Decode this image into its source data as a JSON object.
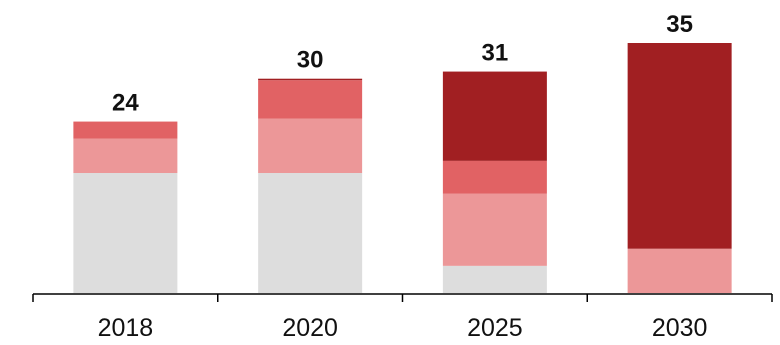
{
  "chart_data": {
    "type": "bar",
    "stacked": true,
    "categories": [
      "2018",
      "2020",
      "2025",
      "2030"
    ],
    "totals": [
      24,
      30,
      31,
      35
    ],
    "series": [
      {
        "values": [
          16.8,
          16.8,
          3.8,
          0
        ],
        "color": "#dddddd"
      },
      {
        "values": [
          4.8,
          7.6,
          10.1,
          6.2
        ],
        "color": "#ec9798"
      },
      {
        "values": [
          2.4,
          5.4,
          4.6,
          0
        ],
        "color": "#e16264"
      },
      {
        "values": [
          0,
          0.2,
          12.5,
          28.8
        ],
        "color": "#a11f22"
      }
    ],
    "ylim": [
      0,
      35
    ],
    "grid": false,
    "legend": "none",
    "title": "",
    "xlabel": "",
    "ylabel": ""
  }
}
